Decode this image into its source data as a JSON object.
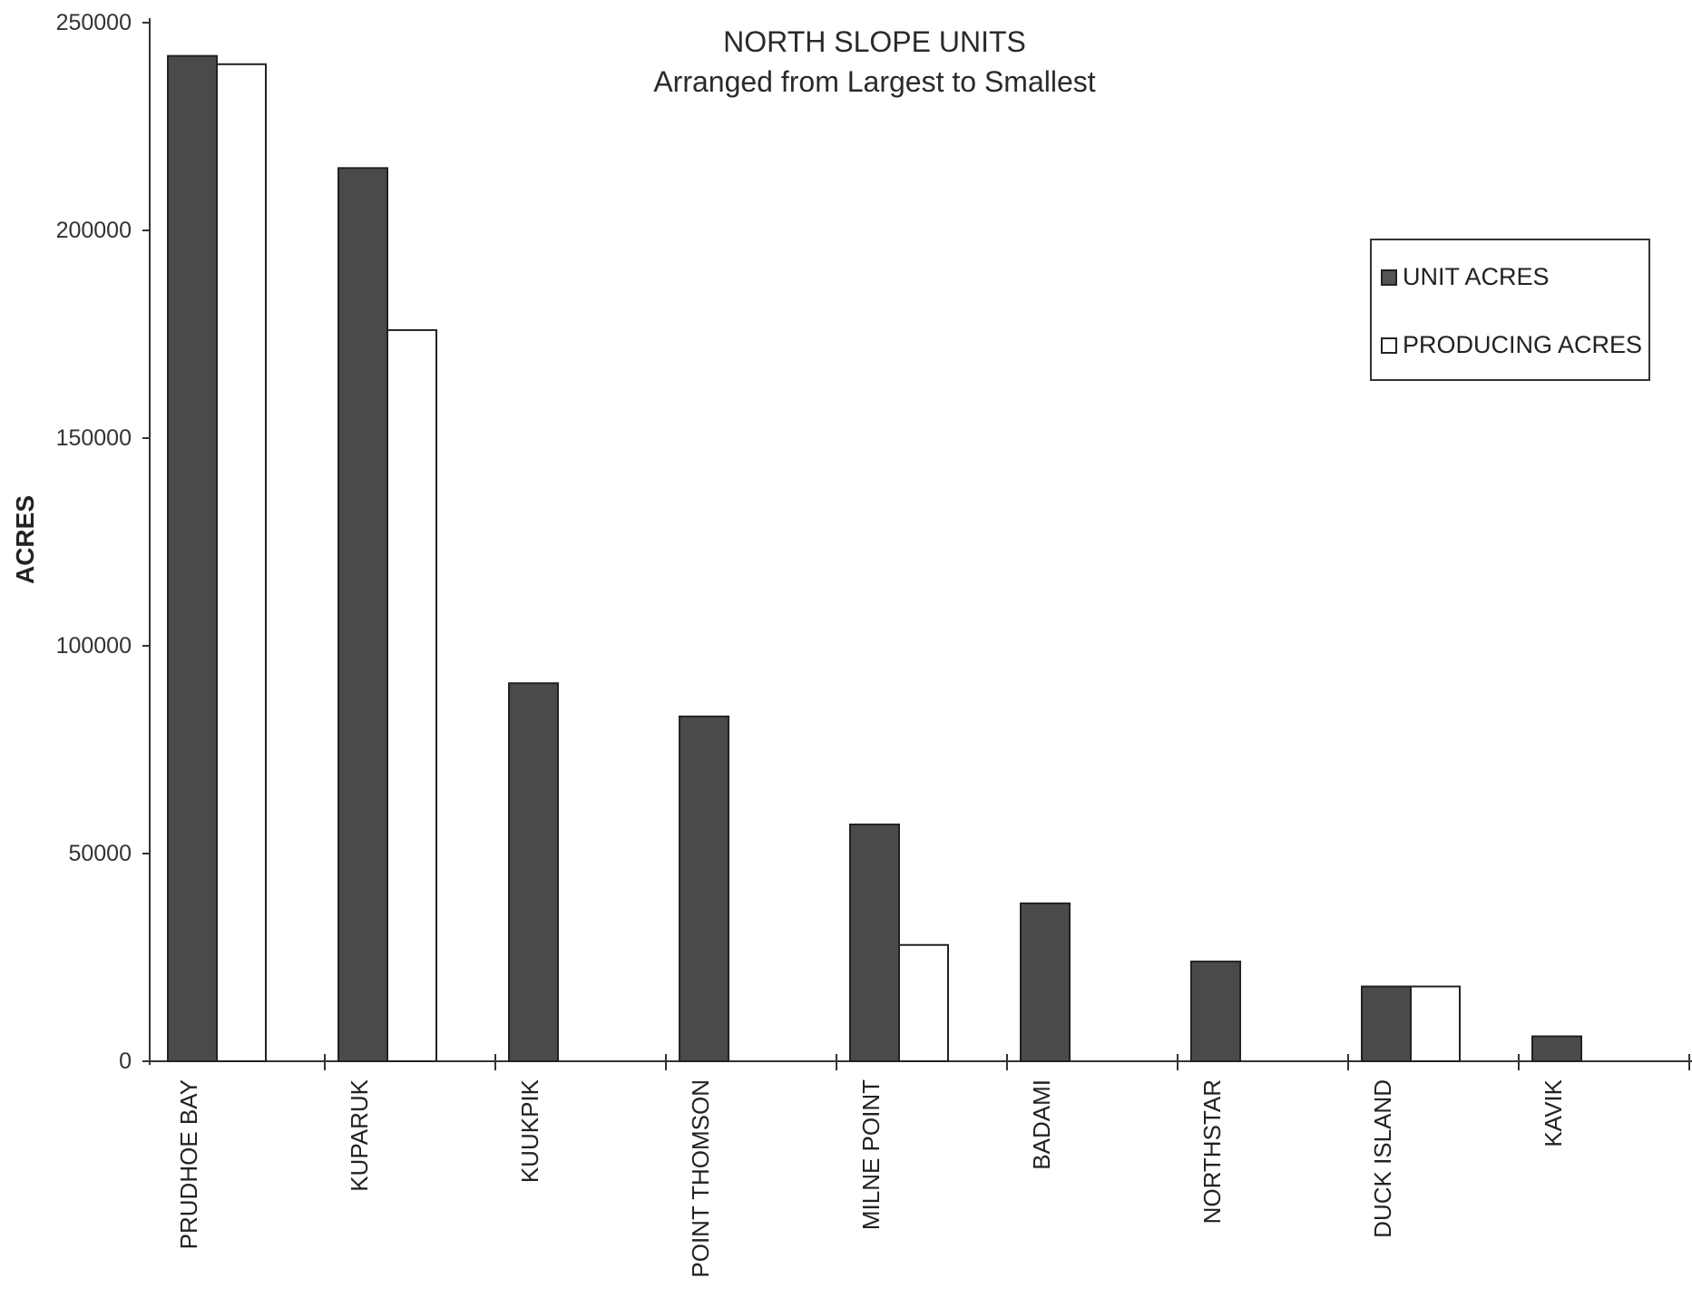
{
  "chart_data": {
    "type": "bar",
    "title": "NORTH SLOPE UNITS",
    "subtitle": "Arranged from Largest to Smallest",
    "xlabel": "",
    "ylabel": "ACRES",
    "ylim": [
      0,
      250000
    ],
    "yticks": [
      "0",
      "50000",
      "100000",
      "150000",
      "200000",
      "250000"
    ],
    "categories": [
      "PRUDHOE BAY",
      "KUPARUK",
      "KUUKPIK",
      "POINT THOMSON",
      "MILNE POINT",
      "BADAMI",
      "NORTHSTAR",
      "DUCK ISLAND",
      "KAVIK"
    ],
    "series": [
      {
        "name": "UNIT ACRES",
        "color": "#4a4a4a",
        "values": [
          242000,
          215000,
          91000,
          83000,
          57000,
          38000,
          24000,
          18000,
          6000
        ]
      },
      {
        "name": "PRODUCING ACRES",
        "color": "#ffffff",
        "values": [
          240000,
          176000,
          0,
          0,
          28000,
          0,
          0,
          18000,
          0
        ]
      }
    ],
    "legend_position": "top-right",
    "grid": false
  },
  "legend": {
    "unit_label": "UNIT ACRES",
    "producing_label": "PRODUCING ACRES"
  }
}
